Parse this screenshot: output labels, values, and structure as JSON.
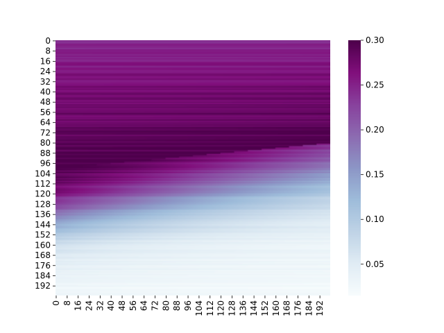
{
  "chart_data": {
    "type": "heatmap",
    "title": "",
    "xlabel": "",
    "ylabel": "",
    "rows": 200,
    "cols": 200,
    "x_tick_labels": [
      "0",
      "8",
      "16",
      "24",
      "32",
      "40",
      "48",
      "56",
      "64",
      "72",
      "80",
      "88",
      "96",
      "104",
      "112",
      "120",
      "128",
      "136",
      "144",
      "152",
      "160",
      "168",
      "176",
      "184",
      "192"
    ],
    "y_tick_labels": [
      "0",
      "8",
      "16",
      "24",
      "32",
      "40",
      "48",
      "56",
      "64",
      "72",
      "80",
      "88",
      "96",
      "104",
      "112",
      "120",
      "128",
      "136",
      "144",
      "152",
      "160",
      "168",
      "176",
      "184",
      "192"
    ],
    "colorbar": {
      "cmap": "BuPu",
      "vmin": 0.015,
      "vmax": 0.3,
      "tick_labels": [
        "0.05",
        "0.10",
        "0.15",
        "0.20",
        "0.25",
        "0.30"
      ],
      "tick_values": [
        0.05,
        0.1,
        0.15,
        0.2,
        0.25,
        0.3
      ]
    },
    "value_profile": {
      "description_of_structure": "values rise from top rows to a dark band (~0.30) then fall to near 0.02 at bottom rows; the transition row shifts upward as column index increases",
      "top_row_value": 0.24,
      "peak_value": 0.3,
      "bottom_row_value": 0.02,
      "band_center_row_at_col0": 100,
      "band_center_row_at_col199": 80,
      "falloff_center_row_at_col0": 135,
      "falloff_center_row_at_col199": 100
    },
    "colors": {
      "stops": [
        "#f7fcfd",
        "#e0ecf4",
        "#bfd3e6",
        "#9ebcda",
        "#8c96c6",
        "#8c6bb1",
        "#88419d",
        "#810f7c",
        "#4d004b"
      ]
    }
  }
}
